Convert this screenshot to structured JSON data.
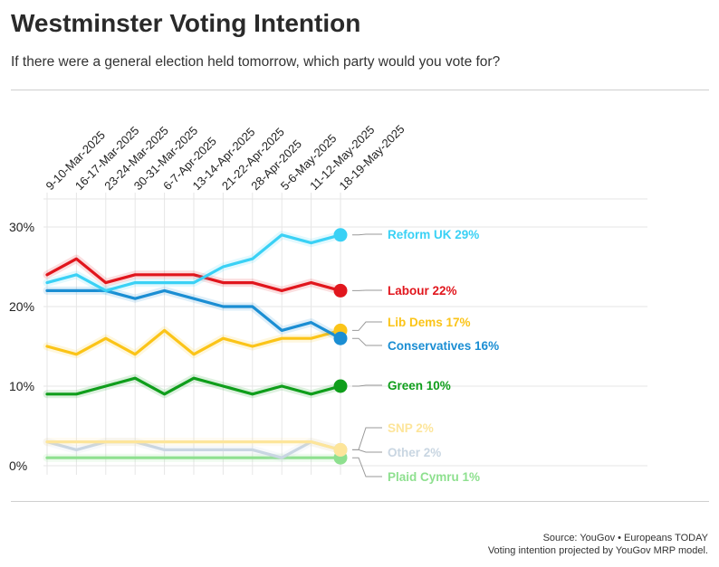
{
  "header": {
    "title": "Westminster Voting Intention",
    "subtitle": "If there were a general election held tomorrow, which party would you vote for?"
  },
  "footer": {
    "source": "Source: YouGov • Europeans TODAY",
    "note": "Voting intention projected by YouGov MRP model."
  },
  "chart_data": {
    "type": "line",
    "categories": [
      "9-10-Mar-2025",
      "16-17-Mar-2025",
      "23-24-Mar-2025",
      "30-31-Mar-2025",
      "6-7-Apr-2025",
      "13-14-Apr-2025",
      "21-22-Apr-2025",
      "28-Apr-2025",
      "5-6-May-2025",
      "11-12-May-2025",
      "18-19-May-2025"
    ],
    "y_ticks": [
      "0%",
      "10%",
      "20%",
      "30%"
    ],
    "ylim": [
      0,
      32
    ],
    "grid": true,
    "series": [
      {
        "name": "Reform UK",
        "label": "Reform UK 29%",
        "color": "#3ad1f5",
        "values": [
          23,
          24,
          22,
          23,
          23,
          23,
          25,
          26,
          29,
          28,
          29
        ]
      },
      {
        "name": "Labour",
        "label": "Labour 22%",
        "color": "#e1161d",
        "values": [
          24,
          26,
          23,
          24,
          24,
          24,
          23,
          23,
          22,
          23,
          22
        ]
      },
      {
        "name": "Lib Dems",
        "label": "Lib Dems 17%",
        "color": "#fbc418",
        "values": [
          15,
          14,
          16,
          14,
          17,
          14,
          16,
          15,
          16,
          16,
          17
        ]
      },
      {
        "name": "Conservatives",
        "label": "Conservatives 16%",
        "color": "#1b8ed3",
        "values": [
          22,
          22,
          22,
          21,
          22,
          21,
          20,
          20,
          17,
          18,
          16
        ]
      },
      {
        "name": "Green",
        "label": "Green 10%",
        "color": "#0f9e1b",
        "values": [
          9,
          9,
          10,
          11,
          9,
          11,
          10,
          9,
          10,
          9,
          10
        ]
      },
      {
        "name": "SNP",
        "label": "SNP 2%",
        "color": "#fde59a",
        "values": [
          3,
          3,
          3,
          3,
          3,
          3,
          3,
          3,
          3,
          3,
          2
        ]
      },
      {
        "name": "Other",
        "label": "Other 2%",
        "color": "#c9d6e2",
        "values": [
          3,
          2,
          3,
          3,
          2,
          2,
          2,
          2,
          1,
          3,
          2
        ]
      },
      {
        "name": "Plaid Cymru",
        "label": "Plaid Cymru 1%",
        "color": "#8ee08f",
        "values": [
          1,
          1,
          1,
          1,
          1,
          1,
          1,
          1,
          1,
          1,
          1
        ]
      }
    ]
  }
}
